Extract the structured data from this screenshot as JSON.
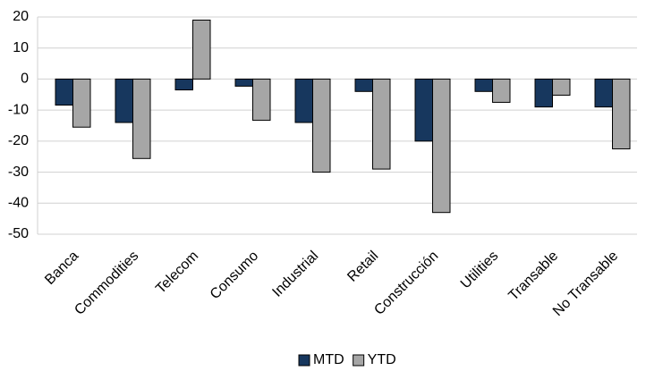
{
  "chart_data": {
    "type": "bar",
    "categories": [
      "Banca",
      "Commodities",
      "Telecom",
      "Consumo",
      "Industrial",
      "Retail",
      "Construcción",
      "Utilities",
      "Transable",
      "No Transable"
    ],
    "series": [
      {
        "name": "MTD",
        "color": "#17375e",
        "values": [
          -8.4,
          -14,
          -3.5,
          -2.3,
          -14,
          -4,
          -20,
          -4,
          -9,
          -9
        ]
      },
      {
        "name": "YTD",
        "color": "#a6a6a6",
        "values": [
          -15.5,
          -25.6,
          19,
          -13.3,
          -30,
          -29,
          -43,
          -7.5,
          -5.2,
          -22.5
        ]
      }
    ],
    "ylim": [
      -50,
      20
    ],
    "yticks": [
      -50,
      -40,
      -30,
      -20,
      -10,
      0,
      10,
      20
    ],
    "grid": true,
    "legend": "bottom"
  }
}
